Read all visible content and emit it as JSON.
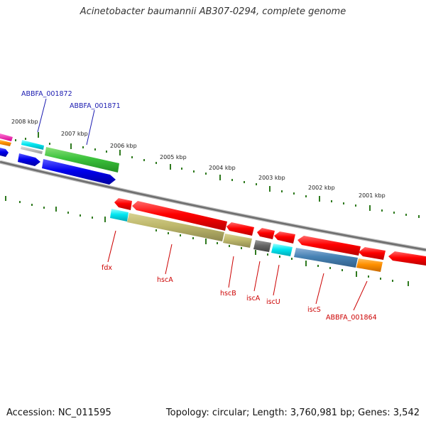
{
  "title": "Acinetobacter baumannii AB307-0294, complete genome",
  "footer": {
    "accession": "Accession: NC_011595",
    "summary": "Topology: circular; Length: 3,760,981 bp; Genes: 3,542"
  },
  "colors": {
    "forward_label": "#1a1ab0",
    "reverse_label": "#cc0000",
    "tick": "#2f7a1f",
    "backbone": "#7a7a7a"
  },
  "kbp_ticks": [
    {
      "label": "2008 kbp"
    },
    {
      "label": "2007 kbp"
    },
    {
      "label": "2006 kbp"
    },
    {
      "label": "2005 kbp"
    },
    {
      "label": "2004 kbp"
    },
    {
      "label": "2003 kbp"
    },
    {
      "label": "2002 kbp"
    },
    {
      "label": "2001 kbp"
    }
  ],
  "gene_labels": {
    "forward": [
      "ABBFA_001872",
      "ABBFA_001871"
    ],
    "reverse": [
      "fdx",
      "hscA",
      "hscB",
      "iscA",
      "iscU",
      "iscS",
      "ABBFA_001864"
    ]
  }
}
